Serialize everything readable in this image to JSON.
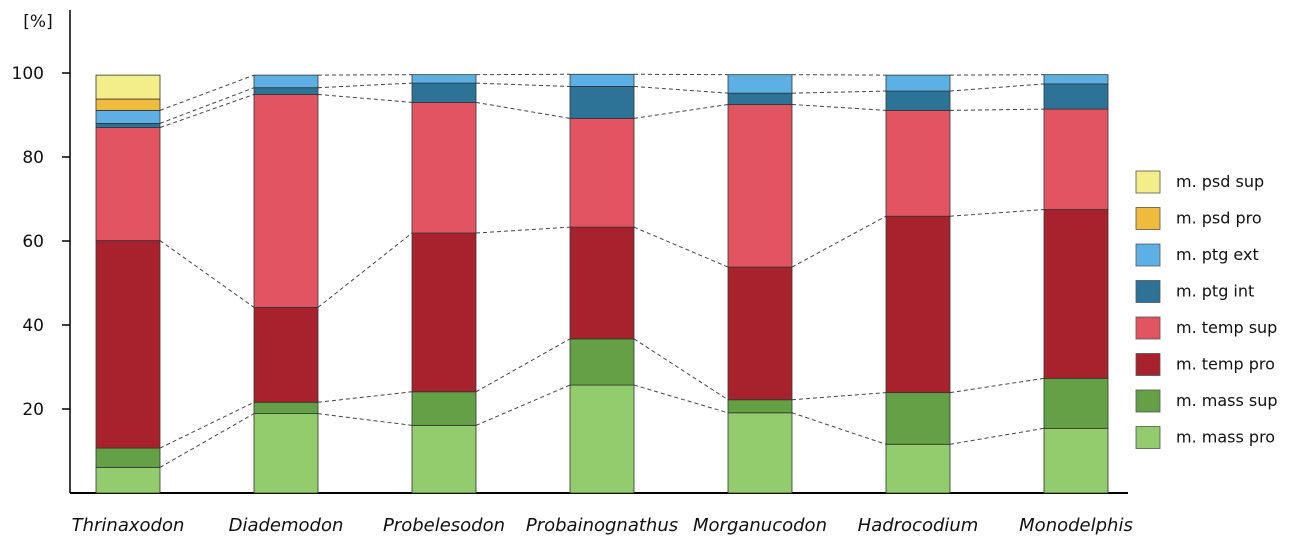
{
  "chart_data": {
    "type": "bar",
    "stacked": true,
    "y_unit": "[%]",
    "ylim": [
      0,
      100
    ],
    "yticks": [
      20,
      40,
      60,
      80,
      100
    ],
    "categories": [
      "Thrinaxodon",
      "Diademodon",
      "Probelesodon",
      "Probainognathus",
      "Morganucodon",
      "Hadrocodium",
      "Monodelphis"
    ],
    "series": [
      {
        "name": "m. mass pro",
        "color": "#93cc6c",
        "values": [
          6.1,
          18.9,
          16.1,
          25.7,
          19.1,
          11.6,
          15.4
        ]
      },
      {
        "name": "m. mass sup",
        "color": "#63a046",
        "values": [
          4.6,
          2.7,
          8.0,
          11.0,
          3.1,
          12.3,
          11.9
        ]
      },
      {
        "name": "m. temp pro",
        "color": "#a8222e",
        "values": [
          49.4,
          22.6,
          37.8,
          26.6,
          31.6,
          42.0,
          40.2
        ]
      },
      {
        "name": "m. temp sup",
        "color": "#e25462",
        "values": [
          26.9,
          50.7,
          31.1,
          25.9,
          38.7,
          25.2,
          23.9
        ]
      },
      {
        "name": "m. ptg int",
        "color": "#2d7397",
        "values": [
          1.0,
          1.6,
          4.6,
          7.6,
          2.7,
          4.6,
          6.0
        ]
      },
      {
        "name": "m. ptg ext",
        "color": "#5db0e4",
        "values": [
          3.1,
          3.0,
          2.0,
          2.9,
          4.4,
          3.8,
          2.2
        ]
      },
      {
        "name": "m. psd pro",
        "color": "#eebb3c",
        "values": [
          2.7,
          0,
          0,
          0,
          0,
          0,
          0
        ]
      },
      {
        "name": "m. psd sup",
        "color": "#f3ee8a",
        "values": [
          5.7,
          0,
          0,
          0,
          0,
          0,
          0
        ]
      }
    ],
    "connector_lines": "dashed",
    "legend_position": "right",
    "grid": false
  }
}
